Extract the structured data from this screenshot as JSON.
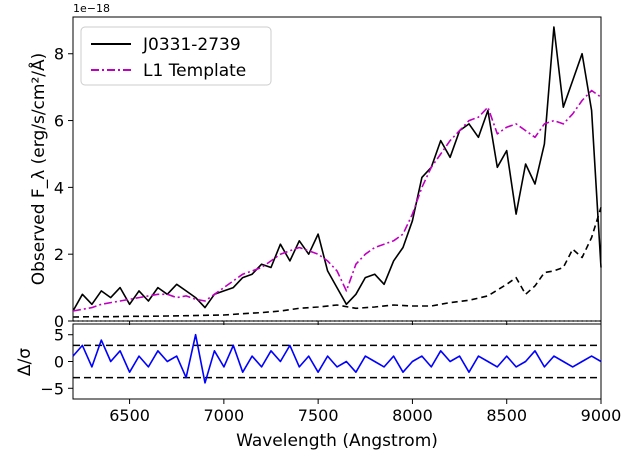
{
  "chart_data": [
    {
      "type": "line",
      "panel": "top",
      "xlim": [
        6200,
        9000
      ],
      "ylim": [
        0,
        9.1
      ],
      "ylabel": "Observed F_λ (erg/s/cm²/Å)",
      "y_offset_text": "1e−18",
      "y_ticks": [
        0,
        2,
        4,
        6,
        8
      ],
      "legend_placement": "top-left",
      "series": [
        {
          "name": "J0331-2739",
          "color": "#000000",
          "style": "solid",
          "x": [
            6200,
            6250,
            6300,
            6350,
            6400,
            6450,
            6500,
            6550,
            6600,
            6650,
            6700,
            6750,
            6800,
            6850,
            6900,
            6950,
            7000,
            7050,
            7100,
            7150,
            7200,
            7250,
            7300,
            7350,
            7400,
            7450,
            7500,
            7550,
            7600,
            7650,
            7700,
            7750,
            7800,
            7850,
            7900,
            7950,
            8000,
            8050,
            8100,
            8150,
            8200,
            8250,
            8300,
            8350,
            8400,
            8450,
            8500,
            8550,
            8600,
            8650,
            8700,
            8750,
            8800,
            8850,
            8900,
            8950,
            9000
          ],
          "y": [
            0.3,
            0.8,
            0.5,
            0.9,
            0.7,
            1.0,
            0.5,
            0.9,
            0.6,
            1.0,
            0.8,
            1.1,
            0.9,
            0.7,
            0.4,
            0.8,
            0.9,
            1.0,
            1.3,
            1.4,
            1.7,
            1.6,
            2.3,
            1.8,
            2.4,
            2.0,
            2.6,
            1.5,
            1.0,
            0.5,
            0.8,
            1.3,
            1.4,
            1.1,
            1.8,
            2.2,
            3.0,
            4.3,
            4.6,
            5.4,
            4.9,
            5.7,
            5.9,
            5.5,
            6.3,
            4.6,
            5.1,
            3.2,
            4.7,
            4.1,
            5.3,
            8.8,
            6.4,
            7.2,
            8.0,
            6.3,
            1.6
          ]
        },
        {
          "name": "L1 Template",
          "color": "#bf00bf",
          "style": "dashdot",
          "x": [
            6200,
            6250,
            6300,
            6350,
            6400,
            6450,
            6500,
            6550,
            6600,
            6650,
            6700,
            6750,
            6800,
            6850,
            6900,
            6950,
            7000,
            7050,
            7100,
            7150,
            7200,
            7250,
            7300,
            7350,
            7400,
            7450,
            7500,
            7550,
            7600,
            7650,
            7700,
            7750,
            7800,
            7850,
            7900,
            7950,
            8000,
            8050,
            8100,
            8150,
            8200,
            8250,
            8300,
            8350,
            8400,
            8450,
            8500,
            8550,
            8600,
            8650,
            8700,
            8750,
            8800,
            8850,
            8900,
            8950,
            9000
          ],
          "y": [
            0.3,
            0.35,
            0.4,
            0.5,
            0.55,
            0.6,
            0.65,
            0.7,
            0.75,
            0.8,
            0.8,
            0.7,
            0.75,
            0.65,
            0.6,
            0.8,
            1.0,
            1.2,
            1.4,
            1.5,
            1.6,
            1.8,
            2.0,
            2.1,
            2.2,
            2.1,
            2.0,
            1.8,
            1.5,
            0.9,
            1.7,
            2.0,
            2.2,
            2.3,
            2.4,
            2.6,
            3.2,
            4.0,
            4.6,
            5.0,
            5.4,
            5.7,
            6.0,
            6.1,
            6.4,
            5.6,
            5.8,
            5.9,
            5.7,
            5.5,
            5.9,
            6.0,
            5.9,
            6.2,
            6.6,
            6.9,
            6.7
          ]
        },
        {
          "name": "",
          "color": "#000000",
          "style": "dashed",
          "x": [
            6200,
            6300,
            6400,
            6500,
            6600,
            6700,
            6800,
            6900,
            7000,
            7100,
            7200,
            7300,
            7400,
            7500,
            7600,
            7700,
            7800,
            7900,
            8000,
            8100,
            8200,
            8300,
            8400,
            8500,
            8550,
            8600,
            8650,
            8700,
            8750,
            8800,
            8850,
            8900,
            8950,
            9000
          ],
          "y": [
            0.12,
            0.13,
            0.13,
            0.14,
            0.14,
            0.15,
            0.16,
            0.17,
            0.18,
            0.22,
            0.25,
            0.3,
            0.38,
            0.42,
            0.48,
            0.38,
            0.42,
            0.48,
            0.45,
            0.45,
            0.55,
            0.62,
            0.75,
            1.1,
            1.3,
            0.8,
            1.05,
            1.45,
            1.5,
            1.6,
            2.15,
            1.9,
            2.5,
            3.4
          ]
        },
        {
          "name": "",
          "color": "#000000",
          "style": "dotted",
          "x": [
            6200,
            9000
          ],
          "y": [
            0,
            0
          ]
        }
      ]
    },
    {
      "type": "line",
      "panel": "bottom",
      "xlim": [
        6200,
        9000
      ],
      "ylim": [
        -7,
        7
      ],
      "xlabel": "Wavelength (Angstrom)",
      "ylabel": "Δ/σ",
      "x_ticks": [
        6500,
        7000,
        7500,
        8000,
        8500,
        9000
      ],
      "y_ticks": [
        -5,
        0,
        5
      ],
      "reference_lines": [
        -3,
        3
      ],
      "series": [
        {
          "name": "",
          "color": "#0000ff",
          "style": "solid",
          "x": [
            6200,
            6250,
            6300,
            6350,
            6400,
            6450,
            6500,
            6550,
            6600,
            6650,
            6700,
            6750,
            6800,
            6850,
            6900,
            6950,
            7000,
            7050,
            7100,
            7150,
            7200,
            7250,
            7300,
            7350,
            7400,
            7450,
            7500,
            7550,
            7600,
            7650,
            7700,
            7750,
            7800,
            7850,
            7900,
            7950,
            8000,
            8050,
            8100,
            8150,
            8200,
            8250,
            8300,
            8350,
            8400,
            8450,
            8500,
            8550,
            8600,
            8650,
            8700,
            8750,
            8800,
            8850,
            8900,
            8950,
            9000
          ],
          "y": [
            1,
            3,
            -1,
            4,
            0,
            2,
            -2,
            1,
            -1,
            2,
            0,
            1,
            -3,
            5,
            -4,
            2,
            -1,
            3,
            -2,
            1,
            -1,
            2,
            0,
            3,
            -1,
            1,
            -2,
            1,
            -1,
            0,
            -2,
            1,
            0,
            -1,
            1,
            -2,
            0,
            1,
            -1,
            2,
            0,
            1,
            -2,
            1,
            0,
            -1,
            1,
            -1,
            0,
            2,
            -1,
            1,
            0,
            -1,
            0,
            1,
            0
          ]
        }
      ]
    }
  ]
}
